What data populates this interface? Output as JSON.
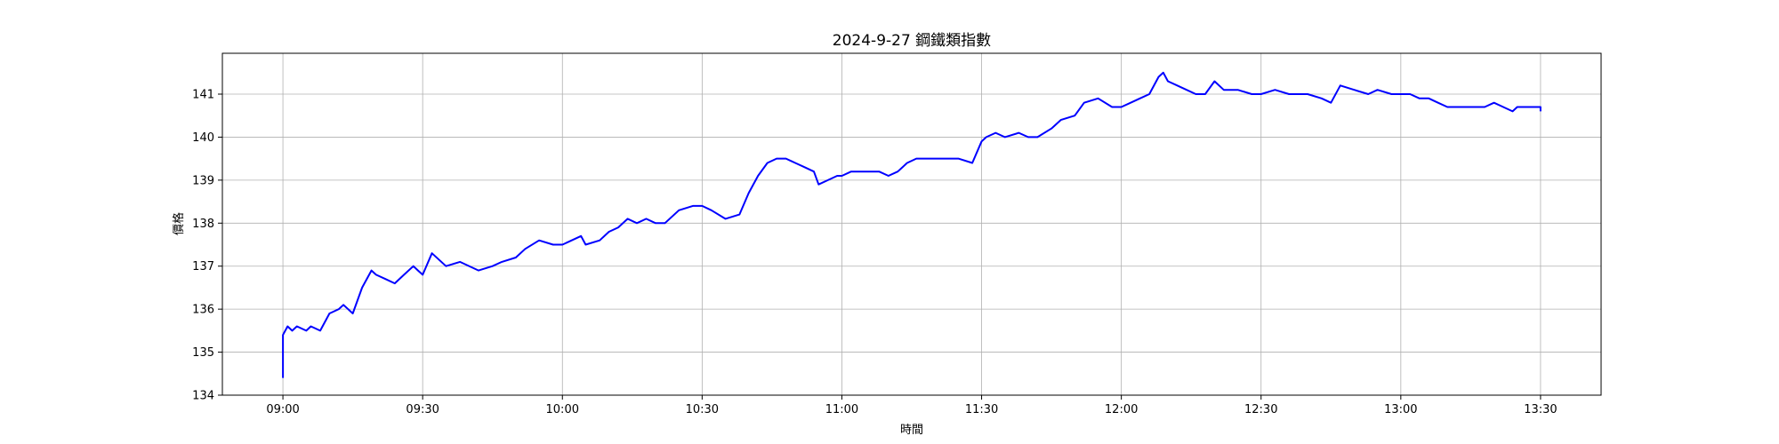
{
  "chart_data": {
    "type": "line",
    "title": "2024-9-27 鋼鐵類指數",
    "xlabel": "時間",
    "ylabel": "價格",
    "x_tick_labels": [
      "09:00",
      "09:30",
      "10:00",
      "10:30",
      "11:00",
      "11:30",
      "12:00",
      "12:30",
      "13:00",
      "13:30"
    ],
    "y_tick_labels": [
      "134",
      "135",
      "136",
      "137",
      "138",
      "139",
      "140",
      "141"
    ],
    "xlim": [
      "08:47",
      "13:43"
    ],
    "ylim": [
      134,
      141.95
    ],
    "grid": true,
    "color": "#0000ff",
    "series": [
      {
        "x": [
          "09:00",
          "09:00",
          "09:01",
          "09:02",
          "09:03",
          "09:05",
          "09:06",
          "09:08",
          "09:10",
          "09:12",
          "09:13",
          "09:15",
          "09:17",
          "09:19",
          "09:20",
          "09:22",
          "09:24",
          "09:26",
          "09:28",
          "09:29",
          "09:30",
          "09:32",
          "09:35",
          "09:38",
          "09:42",
          "09:45",
          "09:47",
          "09:50",
          "09:52",
          "09:55",
          "09:58",
          "10:00",
          "10:02",
          "10:04",
          "10:05",
          "10:08",
          "10:10",
          "10:12",
          "10:14",
          "10:16",
          "10:18",
          "10:20",
          "10:22",
          "10:25",
          "10:28",
          "10:30",
          "10:32",
          "10:35",
          "10:38",
          "10:40",
          "10:42",
          "10:44",
          "10:46",
          "10:48",
          "10:50",
          "10:52",
          "10:54",
          "10:55",
          "10:57",
          "10:59",
          "11:00",
          "11:02",
          "11:05",
          "11:08",
          "11:10",
          "11:12",
          "11:14",
          "11:16",
          "11:18",
          "11:20",
          "11:22",
          "11:25",
          "11:28",
          "11:30",
          "11:31",
          "11:33",
          "11:35",
          "11:38",
          "11:40",
          "11:42",
          "11:45",
          "11:47",
          "11:50",
          "11:52",
          "11:55",
          "11:58",
          "12:00",
          "12:02",
          "12:04",
          "12:06",
          "12:08",
          "12:09",
          "12:10",
          "12:12",
          "12:14",
          "12:16",
          "12:18",
          "12:20",
          "12:22",
          "12:25",
          "12:28",
          "12:30",
          "12:33",
          "12:36",
          "12:40",
          "12:43",
          "12:45",
          "12:47",
          "12:50",
          "12:53",
          "12:55",
          "12:58",
          "13:00",
          "13:02",
          "13:04",
          "13:06",
          "13:08",
          "13:10",
          "13:12",
          "13:15",
          "13:18",
          "13:20",
          "13:22",
          "13:24",
          "13:25",
          "13:27",
          "13:29",
          "13:30",
          "13:30"
        ],
        "y": [
          134.4,
          135.4,
          135.6,
          135.5,
          135.6,
          135.5,
          135.6,
          135.5,
          135.9,
          136.0,
          136.1,
          135.9,
          136.5,
          136.9,
          136.8,
          136.7,
          136.6,
          136.8,
          137.0,
          136.9,
          136.8,
          137.3,
          137.0,
          137.1,
          136.9,
          137.0,
          137.1,
          137.2,
          137.4,
          137.6,
          137.5,
          137.5,
          137.6,
          137.7,
          137.5,
          137.6,
          137.8,
          137.9,
          138.1,
          138.0,
          138.1,
          138.0,
          138.0,
          138.3,
          138.4,
          138.4,
          138.3,
          138.1,
          138.2,
          138.7,
          139.1,
          139.4,
          139.5,
          139.5,
          139.4,
          139.3,
          139.2,
          138.9,
          139.0,
          139.1,
          139.1,
          139.2,
          139.2,
          139.2,
          139.1,
          139.2,
          139.4,
          139.5,
          139.5,
          139.5,
          139.5,
          139.5,
          139.4,
          139.9,
          140.0,
          140.1,
          140.0,
          140.1,
          140.0,
          140.0,
          140.2,
          140.4,
          140.5,
          140.8,
          140.9,
          140.7,
          140.7,
          140.8,
          140.9,
          141.0,
          141.4,
          141.5,
          141.3,
          141.2,
          141.1,
          141.0,
          141.0,
          141.3,
          141.1,
          141.1,
          141.0,
          141.0,
          141.1,
          141.0,
          141.0,
          140.9,
          140.8,
          141.2,
          141.1,
          141.0,
          141.1,
          141.0,
          141.0,
          141.0,
          140.9,
          140.9,
          140.8,
          140.7,
          140.7,
          140.7,
          140.7,
          140.8,
          140.7,
          140.6,
          140.7,
          140.7,
          140.7,
          140.7,
          140.6
        ]
      }
    ]
  }
}
